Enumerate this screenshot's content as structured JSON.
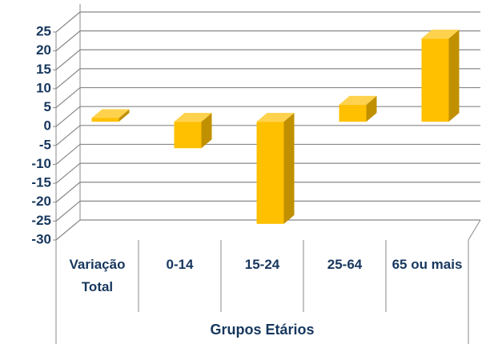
{
  "chart_data": {
    "type": "bar",
    "x_label": "Grupos Etários",
    "categories": [
      "Variação Total",
      "0-14",
      "15-24",
      "25-64",
      "65 ou mais"
    ],
    "values": [
      1,
      -7,
      -27,
      4.5,
      22
    ],
    "color": "#ffc000",
    "ylim": [
      -30,
      25
    ],
    "yticks": [
      -30,
      -25,
      -20,
      -15,
      -10,
      -5,
      0,
      5,
      10,
      15,
      20,
      25
    ],
    "grid": true
  }
}
